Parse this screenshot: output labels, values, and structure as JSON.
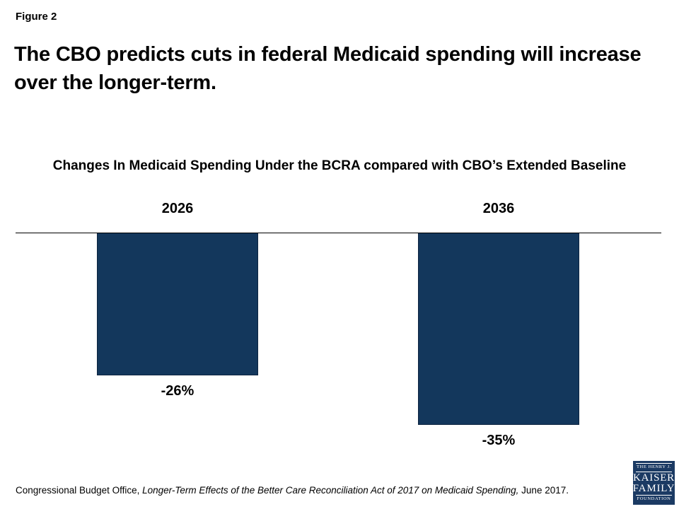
{
  "header": {
    "figure_label": "Figure 2",
    "title": "The CBO predicts cuts in federal Medicaid spending will increase over the longer-term."
  },
  "chart_data": {
    "type": "bar",
    "title": "Changes In Medicaid Spending Under the BCRA compared with CBO’s Extended Baseline",
    "categories": [
      "2026",
      "2036"
    ],
    "values": [
      -26,
      -35
    ],
    "value_labels": [
      "-26%",
      "-35%"
    ],
    "xlabel": "",
    "ylabel": "",
    "ylim": [
      -35,
      0
    ],
    "bar_color": "#13375C",
    "axis_color": "#000000",
    "grid": false,
    "legend_position": "none",
    "baseline_axis_visible": true
  },
  "footer": {
    "source_prefix": "Congressional Budget Office, ",
    "source_italic": "Longer-Term Effects of the Better Care Reconciliation Act of 2017 on Medicaid Spending,",
    "source_suffix": " June 2017.",
    "logo": {
      "line1": "THE HENRY J.",
      "line2": "KAISER",
      "line3": "FAMILY",
      "line4": "FOUNDATION",
      "bg_color": "#1B3A63"
    }
  }
}
